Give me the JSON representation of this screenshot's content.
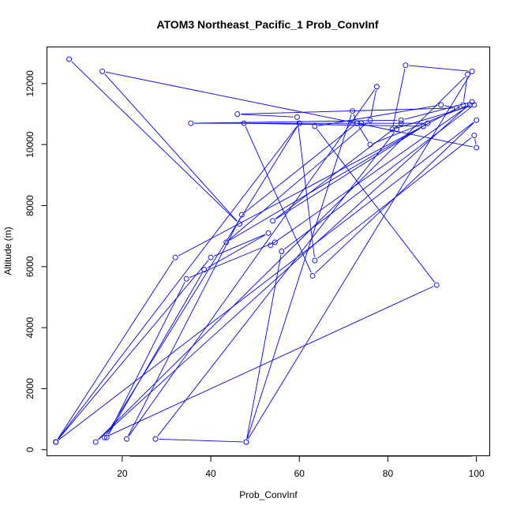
{
  "chart_data": {
    "type": "line",
    "title": "ATOM3 Northeast_Pacific_1 Prob_ConvInf",
    "xlabel": "Prob_ConvInf",
    "ylabel": "Altitude (m)",
    "xlim": [
      3,
      103
    ],
    "ylim": [
      -200,
      13200
    ],
    "x_ticks": [
      20,
      40,
      60,
      80,
      100
    ],
    "y_ticks": [
      0,
      2000,
      4000,
      6000,
      8000,
      10000,
      12000
    ],
    "grid": false,
    "series_color": "#0000ff",
    "x": [
      8,
      46.5,
      15.5,
      100,
      99.5,
      63.5,
      59.5,
      46,
      95.5,
      92,
      63.5,
      91,
      16,
      60,
      5,
      5,
      100,
      63,
      47.5,
      88,
      54,
      83,
      82,
      27.5,
      48,
      56,
      99.5,
      81,
      84,
      99,
      48,
      72,
      73,
      47,
      21,
      77.5,
      76,
      43.5,
      89,
      35.5,
      83,
      99,
      14,
      98,
      97,
      32,
      5,
      40,
      53,
      38.5,
      16.5,
      34.5,
      54.5,
      53.5,
      98.5,
      76,
      73,
      74
    ],
    "y": [
      12800,
      7400,
      12400,
      9900,
      10300,
      6200,
      10900,
      11000,
      11200,
      11300,
      10600,
      5400,
      400,
      10700,
      250,
      250,
      10800,
      5700,
      10700,
      10600,
      7500,
      10700,
      10500,
      350,
      250,
      6500,
      11300,
      10500,
      12600,
      12400,
      250,
      11100,
      10700,
      7700,
      350,
      11900,
      10800,
      6800,
      10700,
      10700,
      10800,
      11400,
      250,
      12300,
      11300,
      6300,
      250,
      6300,
      7100,
      5900,
      400,
      5600,
      6800,
      6700,
      11300,
      10000,
      10700,
      10700
    ]
  }
}
